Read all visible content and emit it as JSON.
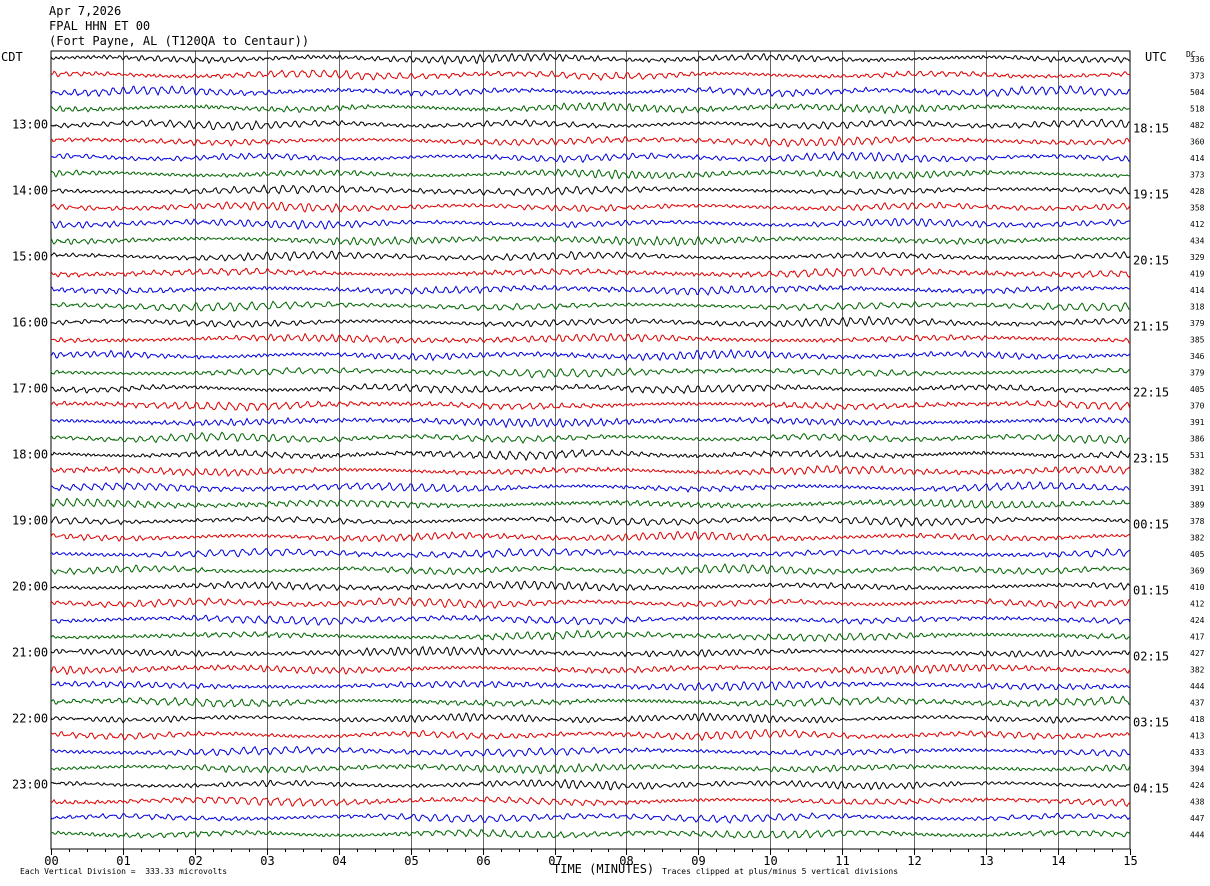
{
  "header": {
    "date": "Apr 7,2026",
    "station": "FPAL HHN ET 00",
    "location": "(Fort Payne, AL (T120QA to Centaur))"
  },
  "axes": {
    "left_tz": "CDT",
    "right_tz": "UTC",
    "dc_label": "DC",
    "xlabel": "TIME (MINUTES)"
  },
  "footer": {
    "scale_note": "Each Vertical Division =  333.33 microvolts",
    "clip_note": "Traces clipped at plus/minus 5 vertical divisions"
  },
  "colors": [
    "#000000",
    "#dd0000",
    "#0000dd",
    "#006600"
  ],
  "chart_data": {
    "type": "line",
    "title": "FPAL HHN ET 00",
    "xlabel": "TIME (MINUTES)",
    "xlim": [
      0,
      15
    ],
    "x_ticks": [
      "00",
      "01",
      "02",
      "03",
      "04",
      "05",
      "06",
      "07",
      "08",
      "09",
      "10",
      "11",
      "12",
      "13",
      "14",
      "15"
    ],
    "left_hour_labels": [
      "13:00",
      "14:00",
      "15:00",
      "16:00",
      "17:00",
      "18:00",
      "19:00",
      "20:00",
      "21:00",
      "22:00",
      "23:00"
    ],
    "right_hour_labels": [
      "18:15",
      "19:15",
      "20:15",
      "21:15",
      "22:15",
      "23:15",
      "00:15",
      "01:15",
      "02:15",
      "03:15",
      "04:15"
    ],
    "trace_dc_offsets": [
      336,
      373,
      504,
      518,
      482,
      360,
      414,
      373,
      428,
      358,
      412,
      434,
      329,
      419,
      414,
      318,
      379,
      385,
      346,
      379,
      405,
      370,
      391,
      386,
      531,
      382,
      391,
      389,
      378,
      382,
      405,
      369,
      410,
      412,
      424,
      417,
      427,
      382,
      444,
      437,
      418,
      413,
      433,
      394,
      424,
      438,
      447,
      444
    ],
    "grid": true
  }
}
